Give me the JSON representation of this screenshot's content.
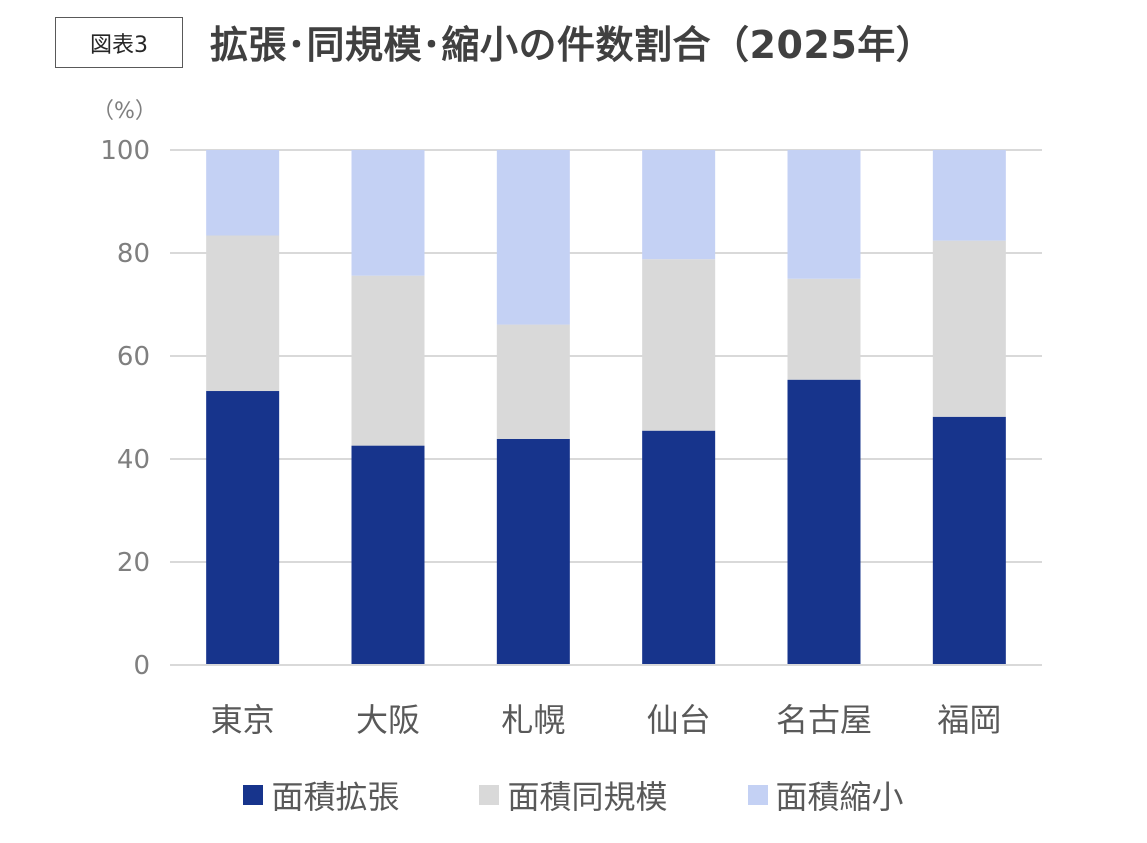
{
  "figure_label": "図表3",
  "title": "拡張･同規模･縮小の件数割合（2025年）",
  "chart_data": {
    "type": "bar",
    "stacked": true,
    "title": "拡張･同規模･縮小の件数割合（2025年）",
    "y_unit": "（%）",
    "ylim": [
      0,
      100
    ],
    "yticks": [
      0,
      20,
      40,
      60,
      80,
      100
    ],
    "grid": true,
    "legend_position": "bottom",
    "categories": [
      "東京",
      "大阪",
      "札幌",
      "仙台",
      "名古屋",
      "福岡"
    ],
    "series": [
      {
        "name": "面積拡張",
        "color": "#17348c",
        "values": [
          53.2,
          42.6,
          43.9,
          45.5,
          55.4,
          48.2
        ]
      },
      {
        "name": "面積同規模",
        "color": "#d9d9d9",
        "values": [
          30.2,
          33.0,
          22.2,
          33.3,
          19.6,
          34.2
        ]
      },
      {
        "name": "面積縮小",
        "color": "#c4d1f4",
        "values": [
          16.6,
          24.4,
          33.9,
          21.2,
          25.0,
          17.6
        ]
      }
    ]
  }
}
